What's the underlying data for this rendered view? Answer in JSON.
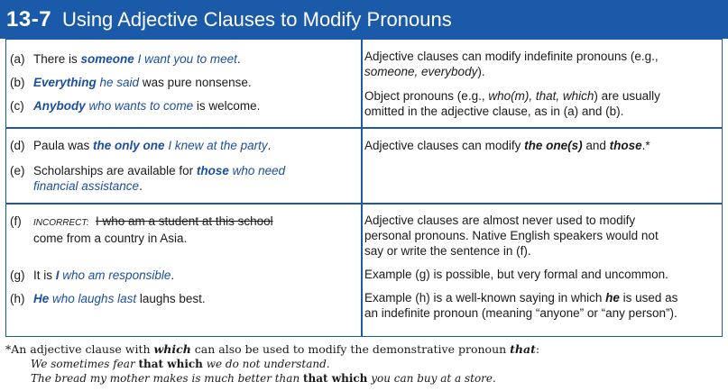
{
  "header": {
    "number": "13-7",
    "title": "Using Adjective Clauses to Modify Pronouns"
  },
  "examples": {
    "a": {
      "label": "(a)",
      "pre": "There is ",
      "bold": "someone",
      "italic": " I want you to meet",
      "post": "."
    },
    "b": {
      "label": "(b)",
      "bold": "Everything",
      "italic": " he said",
      "post": " was pure nonsense."
    },
    "c": {
      "label": "(c)",
      "bold": "Anybody",
      "italic": " who wants to come",
      "post": " is welcome."
    },
    "d": {
      "label": "(d)",
      "pre": "Paula was ",
      "bold": "the only one",
      "italic": " I knew at the party",
      "post": "."
    },
    "e": {
      "label": "(e)",
      "pre": "Scholarships are available for ",
      "bold": "those",
      "italic": " who need",
      "line2": "financial assistance",
      "post": "."
    },
    "f": {
      "label": "(f)",
      "tag": "INCORRECT:",
      "struck": "I who am a student at this school",
      "line2": "come from a country in Asia."
    },
    "g": {
      "label": "(g)",
      "pre": "It is ",
      "bold": "I",
      "italic": " who am responsible",
      "post": "."
    },
    "h": {
      "label": "(h)",
      "bold": "He",
      "italic": " who laughs last",
      "post": " laughs best."
    }
  },
  "explanations": {
    "e1_l1": "Adjective clauses can modify indefinite pronouns (e.g.,",
    "e1_l2a": "someone, everybody",
    "e1_l2b": ").",
    "e2_l1a": "Object pronouns (e.g., ",
    "e2_l1b": "who(m), that, which",
    "e2_l1c": ") are usually",
    "e2_l2": "omitted in the adjective clause, as in (a) and (b).",
    "e3_a": "Adjective clauses can modify ",
    "e3_b": "the one(s)",
    "e3_c": " and ",
    "e3_d": "those",
    "e3_e": ".*",
    "e4_l1": "Adjective clauses are almost never used to modify",
    "e4_l2": "personal pronouns.  Native English speakers would not",
    "e4_l3": "say or write the sentence in (f).",
    "e5": "Example (g) is possible, but very formal and uncommon.",
    "e6_l1a": "Example (h) is a well-known saying in which ",
    "e6_l1b": "he",
    "e6_l1c": " is used as",
    "e6_l2": "an indefinite pronoun (meaning “anyone” or “any person”)."
  },
  "footnote": {
    "l1a": "*An adjective clause with ",
    "l1b": "which",
    "l1c": " can also be used to modify the demonstrative pronoun ",
    "l1d": "that",
    "l1e": ":",
    "l2a": "We sometimes fear ",
    "l2b": "that which",
    "l2c": " we do not understand.",
    "l3a": "The bread my mother makes is much better than ",
    "l3b": "that which",
    "l3c": " you can buy at a store."
  }
}
